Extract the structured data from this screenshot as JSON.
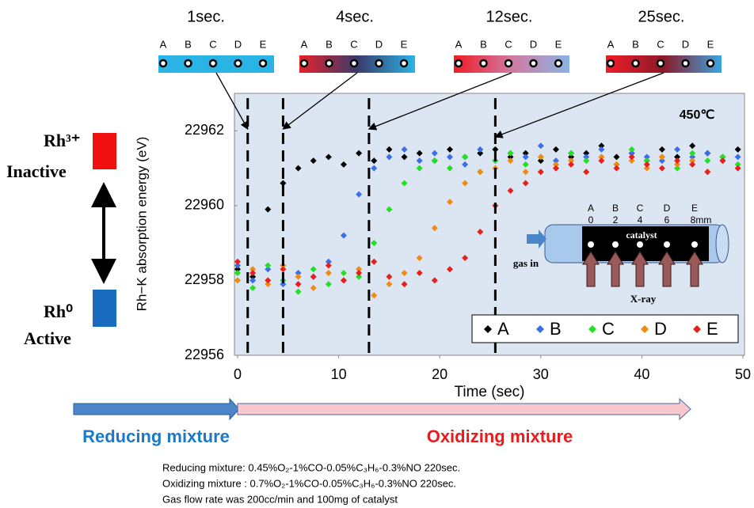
{
  "chart_data": {
    "type": "scatter",
    "x_label": "Time (sec)",
    "y_label": "Rh−K absorption energy (eV)",
    "annotation": "450℃",
    "xlim": [
      0,
      50
    ],
    "ylim": [
      22956,
      22963
    ],
    "xticks": [
      0,
      10,
      20,
      30,
      40,
      50
    ],
    "yticks": [
      22956,
      22958,
      22960,
      22962
    ],
    "markers": [
      1,
      4.5,
      13,
      25.5
    ],
    "legend": "lower right",
    "x": [
      0,
      1.5,
      3,
      4.5,
      6,
      7.5,
      9,
      10.5,
      12,
      13.5,
      15,
      16.5,
      18,
      19.5,
      21,
      22.5,
      24,
      25.5,
      27,
      28.5,
      30,
      31.5,
      33,
      34.5,
      36,
      37.5,
      39,
      40.5,
      42,
      43.5,
      45,
      46.5,
      48,
      49.5
    ],
    "series": [
      {
        "name": "A",
        "color": "#000000",
        "values": [
          22958.3,
          22958.1,
          22959.9,
          22960.6,
          22961.0,
          22961.2,
          22961.3,
          22961.1,
          22961.4,
          22961.2,
          22961.5,
          22961.3,
          22961.4,
          22961.2,
          22961.5,
          22961.3,
          22961.4,
          22961.5,
          22961.3,
          22961.4,
          22961.2,
          22961.5,
          22961.3,
          22961.4,
          22961.6,
          22961.3,
          22961.4,
          22961.2,
          22961.5,
          22961.3,
          22961.6,
          22961.4,
          22961.3,
          22961.5
        ]
      },
      {
        "name": "B",
        "color": "#3a6fe8",
        "values": [
          22958.4,
          22958.0,
          22958.3,
          22957.9,
          22958.2,
          22958.1,
          22958.5,
          22959.2,
          22960.3,
          22961.0,
          22961.3,
          22961.5,
          22961.2,
          22961.4,
          22961.3,
          22961.1,
          22961.5,
          22961.2,
          22961.4,
          22961.3,
          22961.6,
          22961.2,
          22961.4,
          22961.3,
          22961.5,
          22961.1,
          22961.4,
          22961.3,
          22961.2,
          22961.5,
          22961.3,
          22961.4,
          22961.2,
          22961.3
        ]
      },
      {
        "name": "C",
        "color": "#22e022",
        "values": [
          22958.2,
          22957.8,
          22958.4,
          22958.0,
          22957.7,
          22958.3,
          22957.9,
          22958.2,
          22958.1,
          22959.0,
          22959.9,
          22960.6,
          22961.0,
          22961.2,
          22961.0,
          22961.3,
          22960.9,
          22961.2,
          22961.4,
          22961.1,
          22961.3,
          22961.0,
          22961.4,
          22961.2,
          22961.3,
          22961.1,
          22961.5,
          22961.2,
          22961.3,
          22961.0,
          22961.4,
          22961.2,
          22961.3,
          22961.1
        ]
      },
      {
        "name": "D",
        "color": "#f08a10",
        "values": [
          22958.0,
          22958.3,
          22957.9,
          22958.4,
          22958.1,
          22957.8,
          22958.2,
          22958.0,
          22958.3,
          22957.6,
          22957.9,
          22958.2,
          22958.6,
          22959.4,
          22960.1,
          22960.6,
          22960.9,
          22961.0,
          22961.2,
          22960.9,
          22961.3,
          22961.1,
          22961.2,
          22960.9,
          22961.3,
          22961.1,
          22961.2,
          22961.0,
          22961.3,
          22961.1,
          22961.2,
          22960.9,
          22961.2,
          22961.0
        ]
      },
      {
        "name": "E",
        "color": "#e8201c",
        "values": [
          22958.5,
          22958.2,
          22958.0,
          22958.3,
          22957.9,
          22958.1,
          22958.4,
          22958.0,
          22958.2,
          22958.5,
          22958.1,
          22957.9,
          22958.2,
          22958.0,
          22958.3,
          22958.6,
          22959.3,
          22960.0,
          22960.4,
          22960.6,
          22960.9,
          22961.0,
          22961.1,
          22960.9,
          22961.2,
          22961.0,
          22961.3,
          22961.1,
          22961.0,
          22961.2,
          22961.1,
          22960.9,
          22961.2,
          22961.0
        ]
      }
    ]
  },
  "snapshot_positions": [
    "A",
    "B",
    "C",
    "D",
    "E"
  ],
  "snapshots": [
    {
      "label": "1sec.",
      "colors": [
        "#2ab4e6",
        "#2ab4e6",
        "#2ab4e6"
      ]
    },
    {
      "label": "4sec.",
      "colors": [
        "#e8202a",
        "#3a3a6a",
        "#2ab4e6"
      ]
    },
    {
      "label": "12sec.",
      "colors": [
        "#f01c28",
        "#d07aa0",
        "#8ab4e6"
      ]
    },
    {
      "label": "25sec.",
      "colors": [
        "#f01c28",
        "#8a1a28",
        "#3aa6e0"
      ]
    }
  ],
  "states": {
    "top": "Rh³⁺",
    "top_label": "Inactive",
    "bottom": "Rh⁰",
    "bottom_label": "Active"
  },
  "inset": {
    "positions": [
      "A",
      "B",
      "C",
      "D",
      "E"
    ],
    "distances": [
      "0",
      "2",
      "4",
      "6",
      "8mm"
    ],
    "catalyst": "catalyst",
    "gas_in": "gas in",
    "xray": "X-ray"
  },
  "phases": {
    "reducing": "Reducing mixture",
    "oxidizing": "Oxidizing mixture"
  },
  "notes": [
    "Reducing mixture: 0.45%O₂-1%CO-0.05%C₃H₆-0.3%NO   220sec.",
    "Oxidizing mixture : 0.7%O₂-1%CO-0.05%C₃H₆-0.3%NO  220sec.",
    "Gas flow rate was 200cc/min and 100mg of catalyst"
  ]
}
